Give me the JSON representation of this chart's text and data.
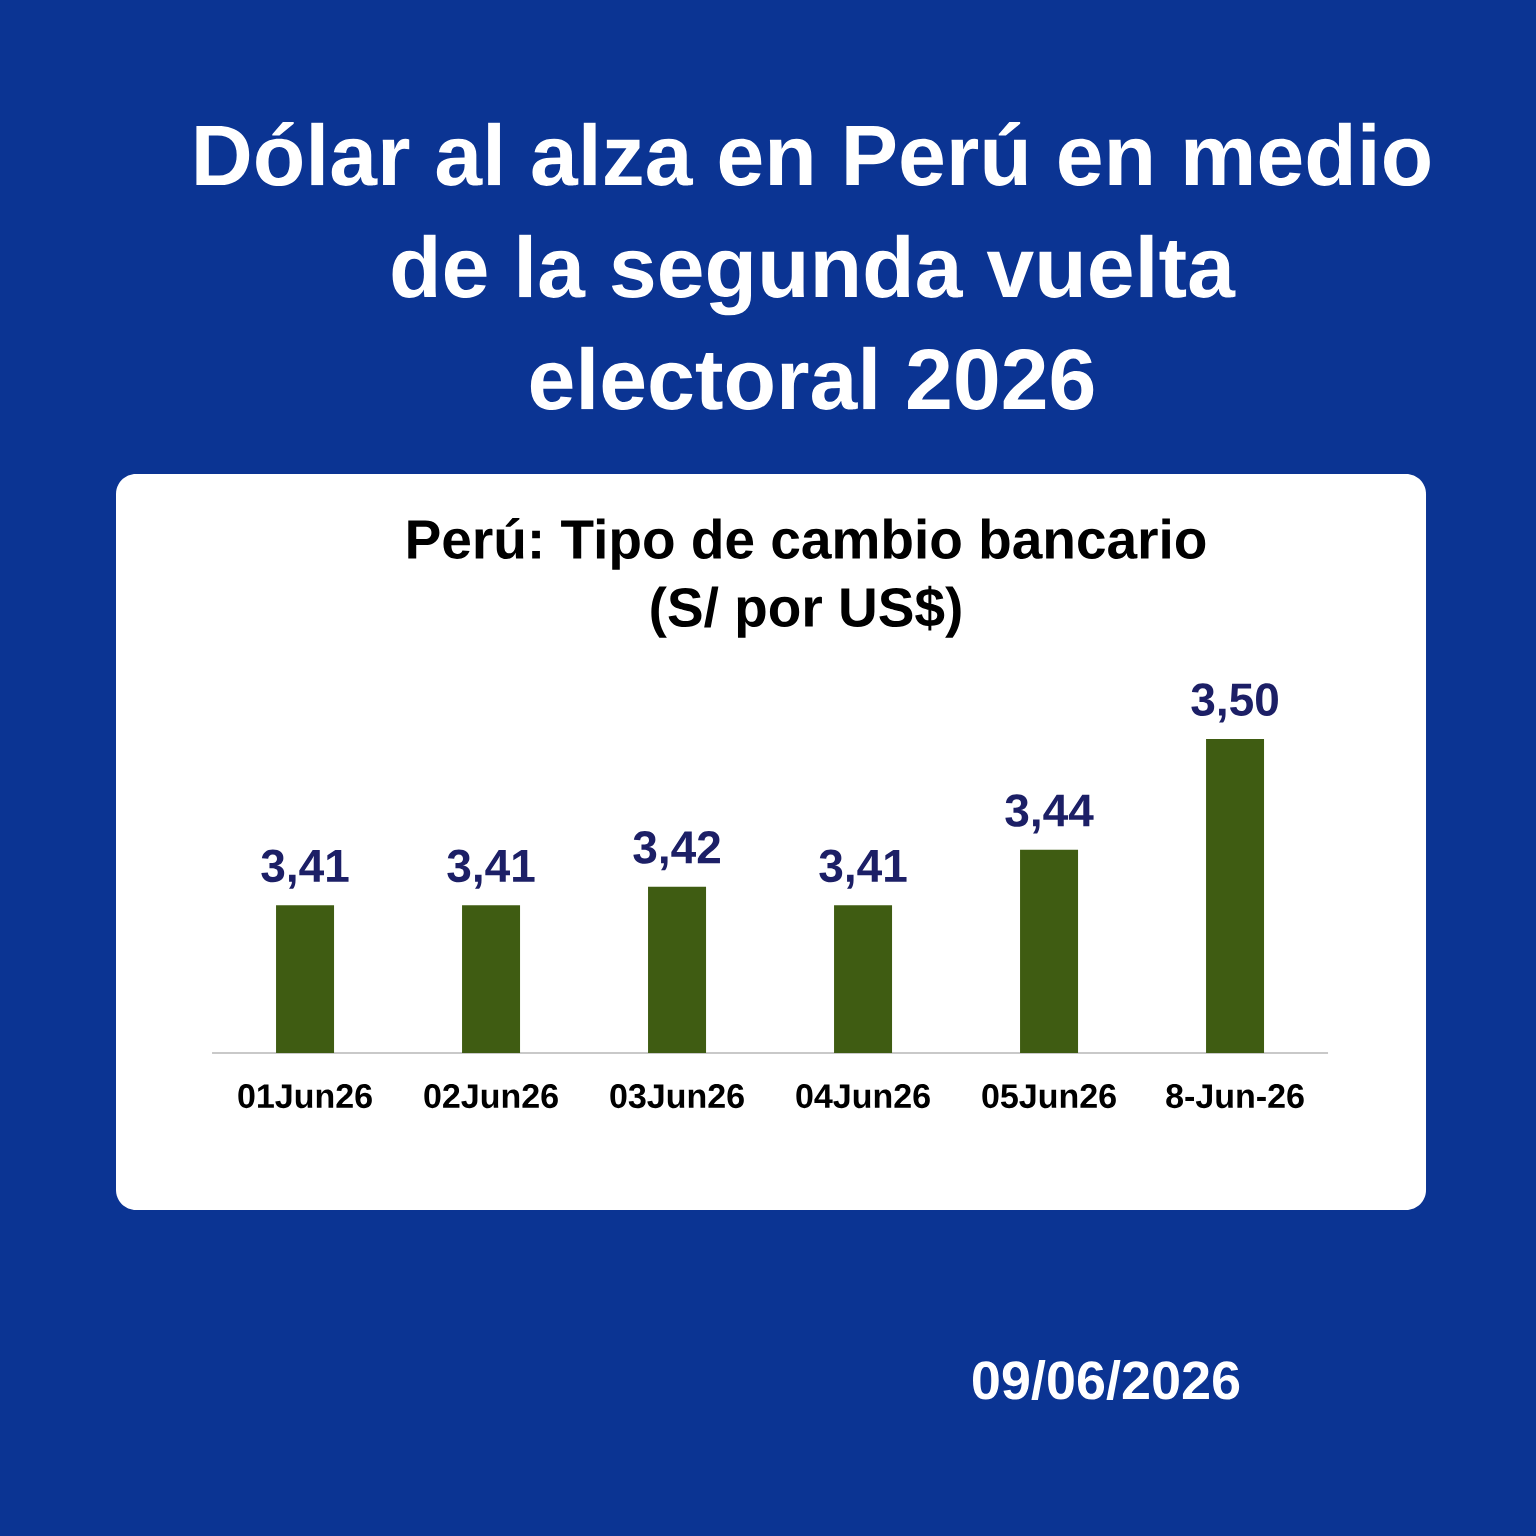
{
  "chart_data": {
    "type": "bar",
    "title": "Dólar al alza en Perú en medio de la segunda vuelta electoral 2026",
    "subtitle": "Perú: Tipo de cambio bancario (S/ por US$)",
    "categories": [
      "01Jun26",
      "02Jun26",
      "03Jun26",
      "04Jun26",
      "05Jun26",
      "8-Jun-26"
    ],
    "values": [
      3.41,
      3.41,
      3.42,
      3.41,
      3.44,
      3.5
    ],
    "value_labels": [
      "3,41",
      "3,41",
      "3,42",
      "3,41",
      "3,44",
      "3,50"
    ],
    "color": "#3f5c12",
    "ylim": [
      3.33,
      3.5
    ],
    "tick_labels": "x",
    "annotations": [
      "09/06/2026"
    ]
  }
}
